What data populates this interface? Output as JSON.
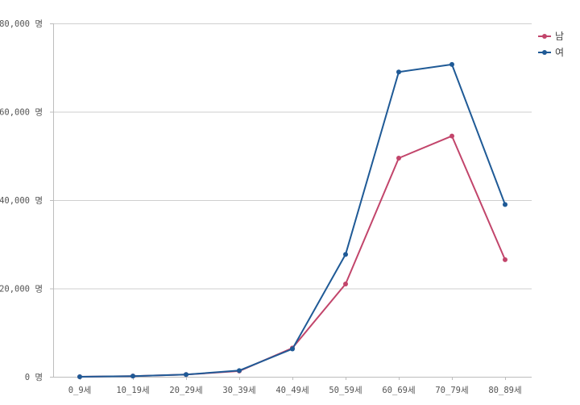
{
  "chart_data": {
    "type": "line",
    "title": "",
    "xlabel": "",
    "ylabel": "",
    "categories": [
      "0_9세",
      "10_19세",
      "20_29세",
      "30_39세",
      "40_49세",
      "50_59세",
      "60_69세",
      "70_79세",
      "80_89세"
    ],
    "ylim": [
      0,
      80000
    ],
    "yticks": [
      0,
      20000,
      40000,
      60000,
      80000
    ],
    "ytick_labels": [
      "0 명",
      "20,000 명",
      "40,000 명",
      "60,000 명",
      "80,000 명"
    ],
    "grid": true,
    "legend_position": "top-right",
    "series": [
      {
        "name": "남",
        "color": "#c2456b",
        "values": [
          0,
          150,
          500,
          1300,
          6500,
          21000,
          49500,
          54500,
          26500
        ]
      },
      {
        "name": "여",
        "color": "#1f5a96",
        "values": [
          0,
          150,
          500,
          1400,
          6300,
          27700,
          69000,
          70700,
          39000
        ]
      }
    ]
  }
}
